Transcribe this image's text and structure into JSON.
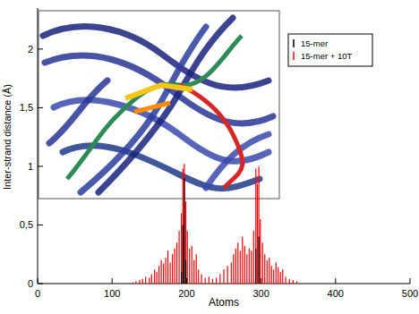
{
  "chart_data": {
    "type": "bar",
    "x_label": "Atoms",
    "y_label": "Inter-strand distance (Å)",
    "x": [
      128,
      132,
      137,
      141,
      145,
      150,
      153,
      157,
      160,
      163,
      166,
      169,
      172,
      175,
      178,
      181,
      184,
      187,
      190,
      193,
      195,
      197,
      199,
      201,
      204,
      207,
      210,
      213,
      216,
      220,
      225,
      230,
      235,
      240,
      245,
      250,
      255,
      260,
      263,
      266,
      269,
      272,
      275,
      278,
      281,
      284,
      287,
      290,
      293,
      295,
      297,
      299,
      302,
      305,
      308,
      311,
      314,
      317,
      320,
      323,
      326,
      329,
      333,
      338,
      343,
      348
    ],
    "series": [
      {
        "name": "15-mer + 10T",
        "color": "#ff0000",
        "values": [
          0.01,
          0.02,
          0.03,
          0.04,
          0.06,
          0.05,
          0.08,
          0.12,
          0.1,
          0.15,
          0.2,
          0.17,
          0.22,
          0.28,
          0.18,
          0.25,
          0.3,
          0.35,
          0.45,
          0.6,
          0.98,
          1.02,
          0.7,
          0.45,
          0.3,
          0.32,
          0.2,
          0.25,
          0.12,
          0.08,
          0.05,
          0.06,
          0.04,
          0.05,
          0.08,
          0.12,
          0.15,
          0.18,
          0.25,
          0.3,
          0.35,
          0.28,
          0.4,
          0.32,
          0.25,
          0.3,
          0.28,
          0.45,
          0.98,
          0.85,
          1.0,
          0.55,
          0.35,
          0.25,
          0.2,
          0.22,
          0.15,
          0.12,
          0.18,
          0.14,
          0.1,
          0.12,
          0.06,
          0.04,
          0.03,
          0.02
        ]
      },
      {
        "name": "15-mer",
        "color": "#000000",
        "values": [
          0,
          0,
          0,
          0,
          0,
          0,
          0,
          0,
          0,
          0,
          0,
          0,
          0,
          0,
          0,
          0,
          0,
          0,
          0,
          0.1,
          0.5,
          0.9,
          0.2,
          0,
          0,
          0,
          0,
          0,
          0,
          0,
          0,
          0,
          0,
          0,
          0,
          0,
          0,
          0,
          0,
          0,
          0,
          0,
          0,
          0,
          0,
          0,
          0,
          0,
          0.3,
          0,
          0.4,
          0,
          0,
          0,
          0,
          0,
          0,
          0,
          0,
          0,
          0,
          0,
          0,
          0,
          0,
          0
        ]
      }
    ],
    "xlim": [
      0,
      500
    ],
    "xticks": [
      0,
      100,
      200,
      300,
      400,
      500
    ],
    "ylim": [
      0,
      2.35
    ],
    "yticks": [
      0,
      {
        "value": 0.5,
        "label": "0,5"
      },
      1,
      {
        "value": 1.5,
        "label": "1,5"
      },
      2
    ],
    "legend": "top-right",
    "grid": false
  }
}
